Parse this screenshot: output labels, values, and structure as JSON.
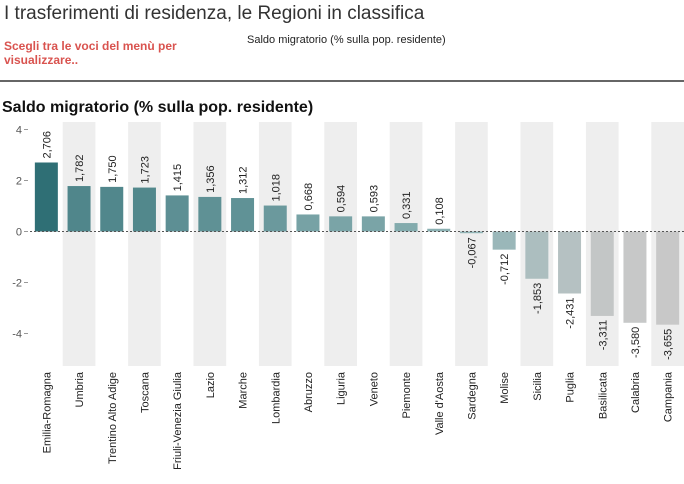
{
  "header": {
    "title": "I trasferimenti di residenza, le Regioni in classifica",
    "menu_hint": "Scegli tra le voci del menù per visualizzare..",
    "selector_value": "Saldo migratorio (% sulla pop. residente)"
  },
  "chart_data": {
    "type": "bar",
    "title": "Saldo migratorio (% sulla pop. residente)",
    "categories": [
      "Emilia-Romagna",
      "Umbria",
      "Trentino Alto Adige",
      "Toscana",
      "Friuli-Venezia Giulia",
      "Lazio",
      "Marche",
      "Lombardia",
      "Abruzzo",
      "Liguria",
      "Veneto",
      "Piemonte",
      "Valle d'Aosta",
      "Sardegna",
      "Molise",
      "Sicilia",
      "Puglia",
      "Basilicata",
      "Calabria",
      "Campania"
    ],
    "values": [
      2.706,
      1.782,
      1.75,
      1.723,
      1.415,
      1.356,
      1.312,
      1.018,
      0.668,
      0.594,
      0.593,
      0.331,
      0.108,
      -0.067,
      -0.712,
      -1.853,
      -2.431,
      -3.311,
      -3.58,
      -3.655
    ],
    "value_labels": [
      "2,706",
      "1,782",
      "1,750",
      "1,723",
      "1,415",
      "1,356",
      "1,312",
      "1,018",
      "0,668",
      "0,594",
      "0,593",
      "0,331",
      "0,108",
      "-0,067",
      "-0,712",
      "-1,853",
      "-2,431",
      "-3,311",
      "-3,580",
      "-3,655"
    ],
    "yticks": [
      4,
      2,
      0,
      -2,
      -4
    ],
    "ylim": [
      -5.3,
      4.3
    ],
    "xlabel": "",
    "ylabel": "",
    "colors": {
      "high": "#2f6f75",
      "zero": "#8fb3b5",
      "low": "#c8c8c8",
      "band": "#eeeeee",
      "zero_line": "#555555"
    }
  }
}
